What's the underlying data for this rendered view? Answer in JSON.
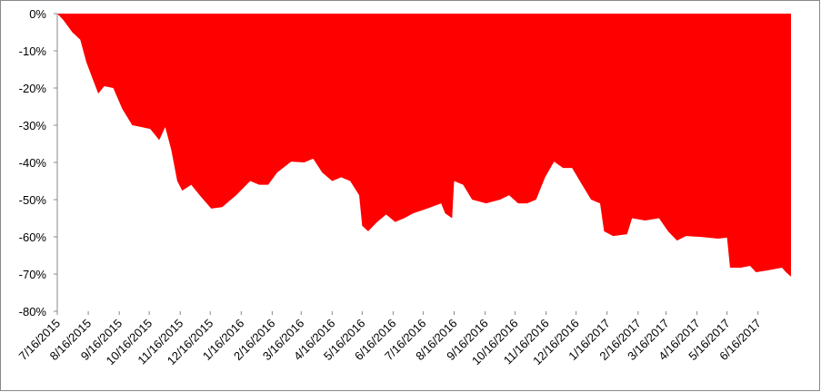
{
  "chart_data": {
    "type": "area",
    "color": "#ff0000",
    "x": [
      "2015-07-16",
      "2015-07-22",
      "2015-07-31",
      "2015-08-08",
      "2015-08-14",
      "2015-08-21",
      "2015-08-26",
      "2015-09-01",
      "2015-09-10",
      "2015-09-19",
      "2015-09-29",
      "2015-10-08",
      "2015-10-17",
      "2015-10-26",
      "2015-11-01",
      "2015-11-07",
      "2015-11-13",
      "2015-11-18",
      "2015-11-27",
      "2015-12-06",
      "2015-12-17",
      "2015-12-28",
      "2016-01-11",
      "2016-01-25",
      "2016-02-03",
      "2016-02-12",
      "2016-02-21",
      "2016-03-06",
      "2016-03-19",
      "2016-03-28",
      "2016-04-06",
      "2016-04-16",
      "2016-04-25",
      "2016-05-04",
      "2016-05-13",
      "2016-05-16",
      "2016-05-22",
      "2016-05-31",
      "2016-06-09",
      "2016-06-18",
      "2016-06-27",
      "2016-07-06",
      "2016-07-20",
      "2016-08-03",
      "2016-08-07",
      "2016-08-14",
      "2016-08-16",
      "2016-08-25",
      "2016-09-03",
      "2016-09-17",
      "2016-10-01",
      "2016-10-10",
      "2016-10-19",
      "2016-10-28",
      "2016-11-06",
      "2016-11-15",
      "2016-11-24",
      "2016-12-03",
      "2016-12-12",
      "2016-12-22",
      "2016-12-31",
      "2017-01-09",
      "2017-01-13",
      "2017-01-22",
      "2017-02-05",
      "2017-02-10",
      "2017-02-23",
      "2017-03-09",
      "2017-03-18",
      "2017-03-27",
      "2017-04-05",
      "2017-04-19",
      "2017-05-07",
      "2017-05-16",
      "2017-05-19",
      "2017-05-30",
      "2017-06-08",
      "2017-06-14",
      "2017-06-26",
      "2017-07-10",
      "2017-07-14",
      "2017-07-19"
    ],
    "values": [
      0,
      -1.7,
      -5,
      -7,
      -13,
      -18,
      -21.5,
      -19.5,
      -20,
      -25.6,
      -30,
      -30.5,
      -31,
      -34,
      -30.5,
      -36.6,
      -45,
      -47.6,
      -46,
      -49,
      -52.4,
      -52,
      -48.8,
      -45,
      -46,
      -46,
      -42.7,
      -39.8,
      -40,
      -39,
      -42.7,
      -45,
      -44,
      -45,
      -48.8,
      -57,
      -58.5,
      -56,
      -54,
      -56,
      -55,
      -53.7,
      -52.4,
      -51,
      -53.7,
      -55,
      -45,
      -46,
      -50,
      -51,
      -50,
      -48.8,
      -51,
      -51,
      -50,
      -44,
      -39.8,
      -41.5,
      -41.5,
      -46,
      -50,
      -51,
      -58.5,
      -59.8,
      -59.3,
      -55,
      -55.6,
      -55,
      -58.5,
      -61,
      -59.8,
      -60,
      -60.5,
      -60.2,
      -68.3,
      -68.3,
      -67.8,
      -69.5,
      -69,
      -68.3,
      -69.5,
      -70.7
    ],
    "xlim": [
      "2015-07-16",
      "2017-07-19"
    ],
    "ylim": [
      -80,
      0
    ],
    "yticks": [
      {
        "value": 0,
        "label": "0%"
      },
      {
        "value": -10,
        "label": "-10%"
      },
      {
        "value": -20,
        "label": "-20%"
      },
      {
        "value": -30,
        "label": "-30%"
      },
      {
        "value": -40,
        "label": "-40%"
      },
      {
        "value": -50,
        "label": "-50%"
      },
      {
        "value": -60,
        "label": "-60%"
      },
      {
        "value": -70,
        "label": "-70%"
      },
      {
        "value": -80,
        "label": "-80%"
      }
    ],
    "xticks": [
      {
        "value": "2015-07-16",
        "label": "7/16/2015"
      },
      {
        "value": "2015-08-16",
        "label": "8/16/2015"
      },
      {
        "value": "2015-09-16",
        "label": "9/16/2015"
      },
      {
        "value": "2015-10-16",
        "label": "10/16/2015"
      },
      {
        "value": "2015-11-16",
        "label": "11/16/2015"
      },
      {
        "value": "2015-12-16",
        "label": "12/16/2015"
      },
      {
        "value": "2016-01-16",
        "label": "1/16/2016"
      },
      {
        "value": "2016-02-16",
        "label": "2/16/2016"
      },
      {
        "value": "2016-03-16",
        "label": "3/16/2016"
      },
      {
        "value": "2016-04-16",
        "label": "4/16/2016"
      },
      {
        "value": "2016-05-16",
        "label": "5/16/2016"
      },
      {
        "value": "2016-06-16",
        "label": "6/16/2016"
      },
      {
        "value": "2016-07-16",
        "label": "7/16/2016"
      },
      {
        "value": "2016-08-16",
        "label": "8/16/2016"
      },
      {
        "value": "2016-09-16",
        "label": "9/16/2016"
      },
      {
        "value": "2016-10-16",
        "label": "10/16/2016"
      },
      {
        "value": "2016-11-16",
        "label": "11/16/2016"
      },
      {
        "value": "2016-12-16",
        "label": "12/16/2016"
      },
      {
        "value": "2017-01-16",
        "label": "1/16/2017"
      },
      {
        "value": "2017-02-16",
        "label": "2/16/2017"
      },
      {
        "value": "2017-03-16",
        "label": "3/16/2017"
      },
      {
        "value": "2017-04-16",
        "label": "4/16/2017"
      },
      {
        "value": "2017-05-16",
        "label": "5/16/2017"
      },
      {
        "value": "2017-06-16",
        "label": "6/16/2017"
      }
    ]
  }
}
